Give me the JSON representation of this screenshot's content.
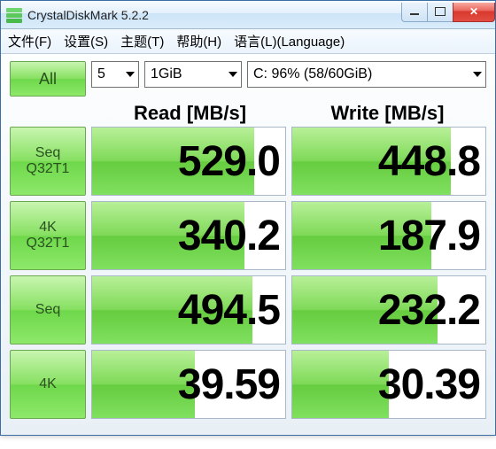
{
  "window": {
    "title": "CrystalDiskMark 5.2.2"
  },
  "menu": {
    "file": "文件(F)",
    "settings": "设置(S)",
    "theme": "主题(T)",
    "help": "帮助(H)",
    "language": "语言(L)(Language)"
  },
  "controls": {
    "all_label": "All",
    "count": "5",
    "size": "1GiB",
    "drive": "C: 96% (58/60GiB)"
  },
  "headers": {
    "read": "Read [MB/s]",
    "write": "Write [MB/s]"
  },
  "rows": [
    {
      "label1": "Seq",
      "label2": "Q32T1",
      "read": "529.0",
      "write": "448.8",
      "read_fill_pct": 84,
      "write_fill_pct": 82
    },
    {
      "label1": "4K",
      "label2": "Q32T1",
      "read": "340.2",
      "write": "187.9",
      "read_fill_pct": 79,
      "write_fill_pct": 72
    },
    {
      "label1": "Seq",
      "label2": "",
      "read": "494.5",
      "write": "232.2",
      "read_fill_pct": 83,
      "write_fill_pct": 75
    },
    {
      "label1": "4K",
      "label2": "",
      "read": "39.59",
      "write": "30.39",
      "read_fill_pct": 53,
      "write_fill_pct": 50
    }
  ],
  "colors": {
    "button_gradient_top": "#c8f5b0",
    "button_gradient_mid": "#86e060",
    "button_gradient_bot": "#6fd84b",
    "fill_gradient_top": "#b8f098",
    "fill_gradient_mid": "#7ed957",
    "titlebar_top": "#f7fbff",
    "titlebar_bot": "#d9ecfa",
    "close_red": "#d9382d"
  }
}
